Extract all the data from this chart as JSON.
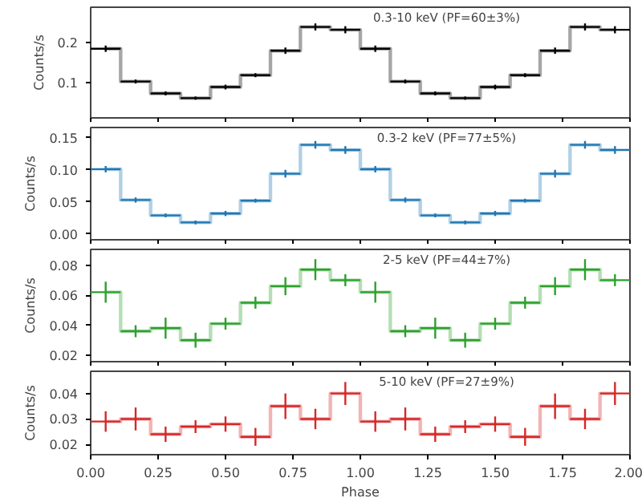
{
  "chart_data": [
    {
      "type": "step",
      "annotations": [
        "0.3-10 keV (PF=60±3%)"
      ],
      "ylabel": "Counts/s",
      "x": [
        0.0556,
        0.1667,
        0.2778,
        0.3889,
        0.5,
        0.6111,
        0.7222,
        0.8333,
        0.9444,
        1.0556,
        1.1667,
        1.2778,
        1.3889,
        1.5,
        1.6111,
        1.7222,
        1.8333,
        1.9444
      ],
      "series": [
        {
          "color": "#000000",
          "values": [
            0.185,
            0.102,
            0.072,
            0.06,
            0.088,
            0.118,
            0.18,
            0.24,
            0.233,
            0.185,
            0.102,
            0.072,
            0.06,
            0.088,
            0.118,
            0.18,
            0.24,
            0.233
          ],
          "errors": [
            0.008,
            0.005,
            0.005,
            0.004,
            0.006,
            0.005,
            0.008,
            0.009,
            0.009,
            0.008,
            0.005,
            0.005,
            0.004,
            0.006,
            0.005,
            0.008,
            0.009,
            0.009
          ],
          "xerrors": [
            0.0556,
            0.0556,
            0.0556,
            0.0556,
            0.0556,
            0.0556,
            0.0556,
            0.0556,
            0.0556,
            0.0556,
            0.0556,
            0.0556,
            0.0556,
            0.0556,
            0.0556,
            0.0556,
            0.0556,
            0.0556
          ]
        }
      ],
      "xlim": [
        0,
        2
      ],
      "ylim": [
        0.01,
        0.29
      ],
      "xticks": [
        {
          "value": 0,
          "label": null
        },
        {
          "value": 0.25,
          "label": null
        },
        {
          "value": 0.5,
          "label": null
        },
        {
          "value": 0.75,
          "label": null
        },
        {
          "value": 1,
          "label": null
        },
        {
          "value": 1.25,
          "label": null
        },
        {
          "value": 1.5,
          "label": null
        },
        {
          "value": 1.75,
          "label": null
        },
        {
          "value": 2,
          "label": null
        }
      ],
      "yticks": [
        0.1,
        0.2
      ],
      "tick_labels": "y"
    },
    {
      "type": "step",
      "annotations": [
        "0.3-2 keV (PF=77±5%)"
      ],
      "ylabel": "Counts/s",
      "x": [
        0.0556,
        0.1667,
        0.2778,
        0.3889,
        0.5,
        0.6111,
        0.7222,
        0.8333,
        0.9444,
        1.0556,
        1.1667,
        1.2778,
        1.3889,
        1.5,
        1.6111,
        1.7222,
        1.8333,
        1.9444
      ],
      "series": [
        {
          "color": "#1f77b4",
          "values": [
            0.101,
            0.053,
            0.029,
            0.018,
            0.032,
            0.052,
            0.094,
            0.139,
            0.131,
            0.101,
            0.053,
            0.029,
            0.018,
            0.032,
            0.052,
            0.094,
            0.139,
            0.131
          ],
          "errors": [
            0.005,
            0.004,
            0.003,
            0.003,
            0.004,
            0.003,
            0.006,
            0.006,
            0.006,
            0.005,
            0.004,
            0.003,
            0.003,
            0.004,
            0.003,
            0.006,
            0.006,
            0.006
          ],
          "xerrors": [
            0.0556,
            0.0556,
            0.0556,
            0.0556,
            0.0556,
            0.0556,
            0.0556,
            0.0556,
            0.0556,
            0.0556,
            0.0556,
            0.0556,
            0.0556,
            0.0556,
            0.0556,
            0.0556,
            0.0556,
            0.0556
          ]
        }
      ],
      "xlim": [
        0,
        2
      ],
      "ylim": [
        -0.009,
        0.166
      ],
      "xticks": [
        {
          "value": 0,
          "label": null
        },
        {
          "value": 0.25,
          "label": null
        },
        {
          "value": 0.5,
          "label": null
        },
        {
          "value": 0.75,
          "label": null
        },
        {
          "value": 1,
          "label": null
        },
        {
          "value": 1.25,
          "label": null
        },
        {
          "value": 1.5,
          "label": null
        },
        {
          "value": 1.75,
          "label": null
        },
        {
          "value": 2,
          "label": null
        }
      ],
      "yticks": [
        {
          "value": 0,
          "label": "0.00"
        },
        0.05,
        {
          "value": 0.1,
          "label": "0.10"
        },
        0.15
      ],
      "tick_labels": "y"
    },
    {
      "type": "step",
      "annotations": [
        "2-5 keV (PF=44±7%)"
      ],
      "ylabel": "Counts/s",
      "x": [
        0.0556,
        0.1667,
        0.2778,
        0.3889,
        0.5,
        0.6111,
        0.7222,
        0.8333,
        0.9444,
        1.0556,
        1.1667,
        1.2778,
        1.3889,
        1.5,
        1.6111,
        1.7222,
        1.8333,
        1.9444
      ],
      "series": [
        {
          "color": "#2ca02c",
          "values": [
            0.062,
            0.036,
            0.038,
            0.03,
            0.041,
            0.055,
            0.066,
            0.077,
            0.07,
            0.062,
            0.036,
            0.038,
            0.03,
            0.041,
            0.055,
            0.066,
            0.077,
            0.07
          ],
          "errors": [
            0.007,
            0.004,
            0.007,
            0.005,
            0.004,
            0.004,
            0.006,
            0.007,
            0.004,
            0.007,
            0.004,
            0.007,
            0.005,
            0.004,
            0.004,
            0.006,
            0.007,
            0.004
          ],
          "xerrors": [
            0.0556,
            0.0556,
            0.0556,
            0.0556,
            0.0556,
            0.0556,
            0.0556,
            0.0556,
            0.0556,
            0.0556,
            0.0556,
            0.0556,
            0.0556,
            0.0556,
            0.0556,
            0.0556,
            0.0556,
            0.0556
          ]
        }
      ],
      "xlim": [
        0,
        2
      ],
      "ylim": [
        0.0157,
        0.0905
      ],
      "xticks": [
        {
          "value": 0,
          "label": null
        },
        {
          "value": 0.25,
          "label": null
        },
        {
          "value": 0.5,
          "label": null
        },
        {
          "value": 0.75,
          "label": null
        },
        {
          "value": 1,
          "label": null
        },
        {
          "value": 1.25,
          "label": null
        },
        {
          "value": 1.5,
          "label": null
        },
        {
          "value": 1.75,
          "label": null
        },
        {
          "value": 2,
          "label": null
        }
      ],
      "yticks": [
        0.02,
        0.04,
        0.06,
        0.08
      ],
      "tick_labels": "y"
    },
    {
      "type": "step",
      "annotations": [
        "5-10 keV (PF=27±9%)"
      ],
      "ylabel": "Counts/s",
      "xlabel": "Phase",
      "x": [
        0.0556,
        0.1667,
        0.2778,
        0.3889,
        0.5,
        0.6111,
        0.7222,
        0.8333,
        0.9444,
        1.0556,
        1.1667,
        1.2778,
        1.3889,
        1.5,
        1.6111,
        1.7222,
        1.8333,
        1.9444
      ],
      "series": [
        {
          "color": "#d62728",
          "values": [
            0.029,
            0.03,
            0.024,
            0.027,
            0.028,
            0.023,
            0.035,
            0.03,
            0.04,
            0.029,
            0.03,
            0.024,
            0.027,
            0.028,
            0.023,
            0.035,
            0.03,
            0.04
          ],
          "errors": [
            0.004,
            0.0045,
            0.003,
            0.0025,
            0.003,
            0.0035,
            0.005,
            0.004,
            0.0045,
            0.004,
            0.0045,
            0.003,
            0.0025,
            0.003,
            0.0035,
            0.005,
            0.004,
            0.0045
          ],
          "xerrors": [
            0.0556,
            0.0556,
            0.0556,
            0.0556,
            0.0556,
            0.0556,
            0.0556,
            0.0556,
            0.0556,
            0.0556,
            0.0556,
            0.0556,
            0.0556,
            0.0556,
            0.0556,
            0.0556,
            0.0556,
            0.0556
          ]
        }
      ],
      "xlim": [
        0,
        2
      ],
      "ylim": [
        0.016,
        0.0487
      ],
      "xticks": [
        {
          "value": 0,
          "label": "0.00"
        },
        0.25,
        {
          "value": 0.5,
          "label": "0.50"
        },
        0.75,
        {
          "value": 1,
          "label": "1.00"
        },
        1.25,
        {
          "value": 1.5,
          "label": "1.50"
        },
        1.75,
        {
          "value": 2,
          "label": "2.00"
        }
      ],
      "yticks": [
        0.02,
        0.03,
        0.04
      ]
    }
  ]
}
